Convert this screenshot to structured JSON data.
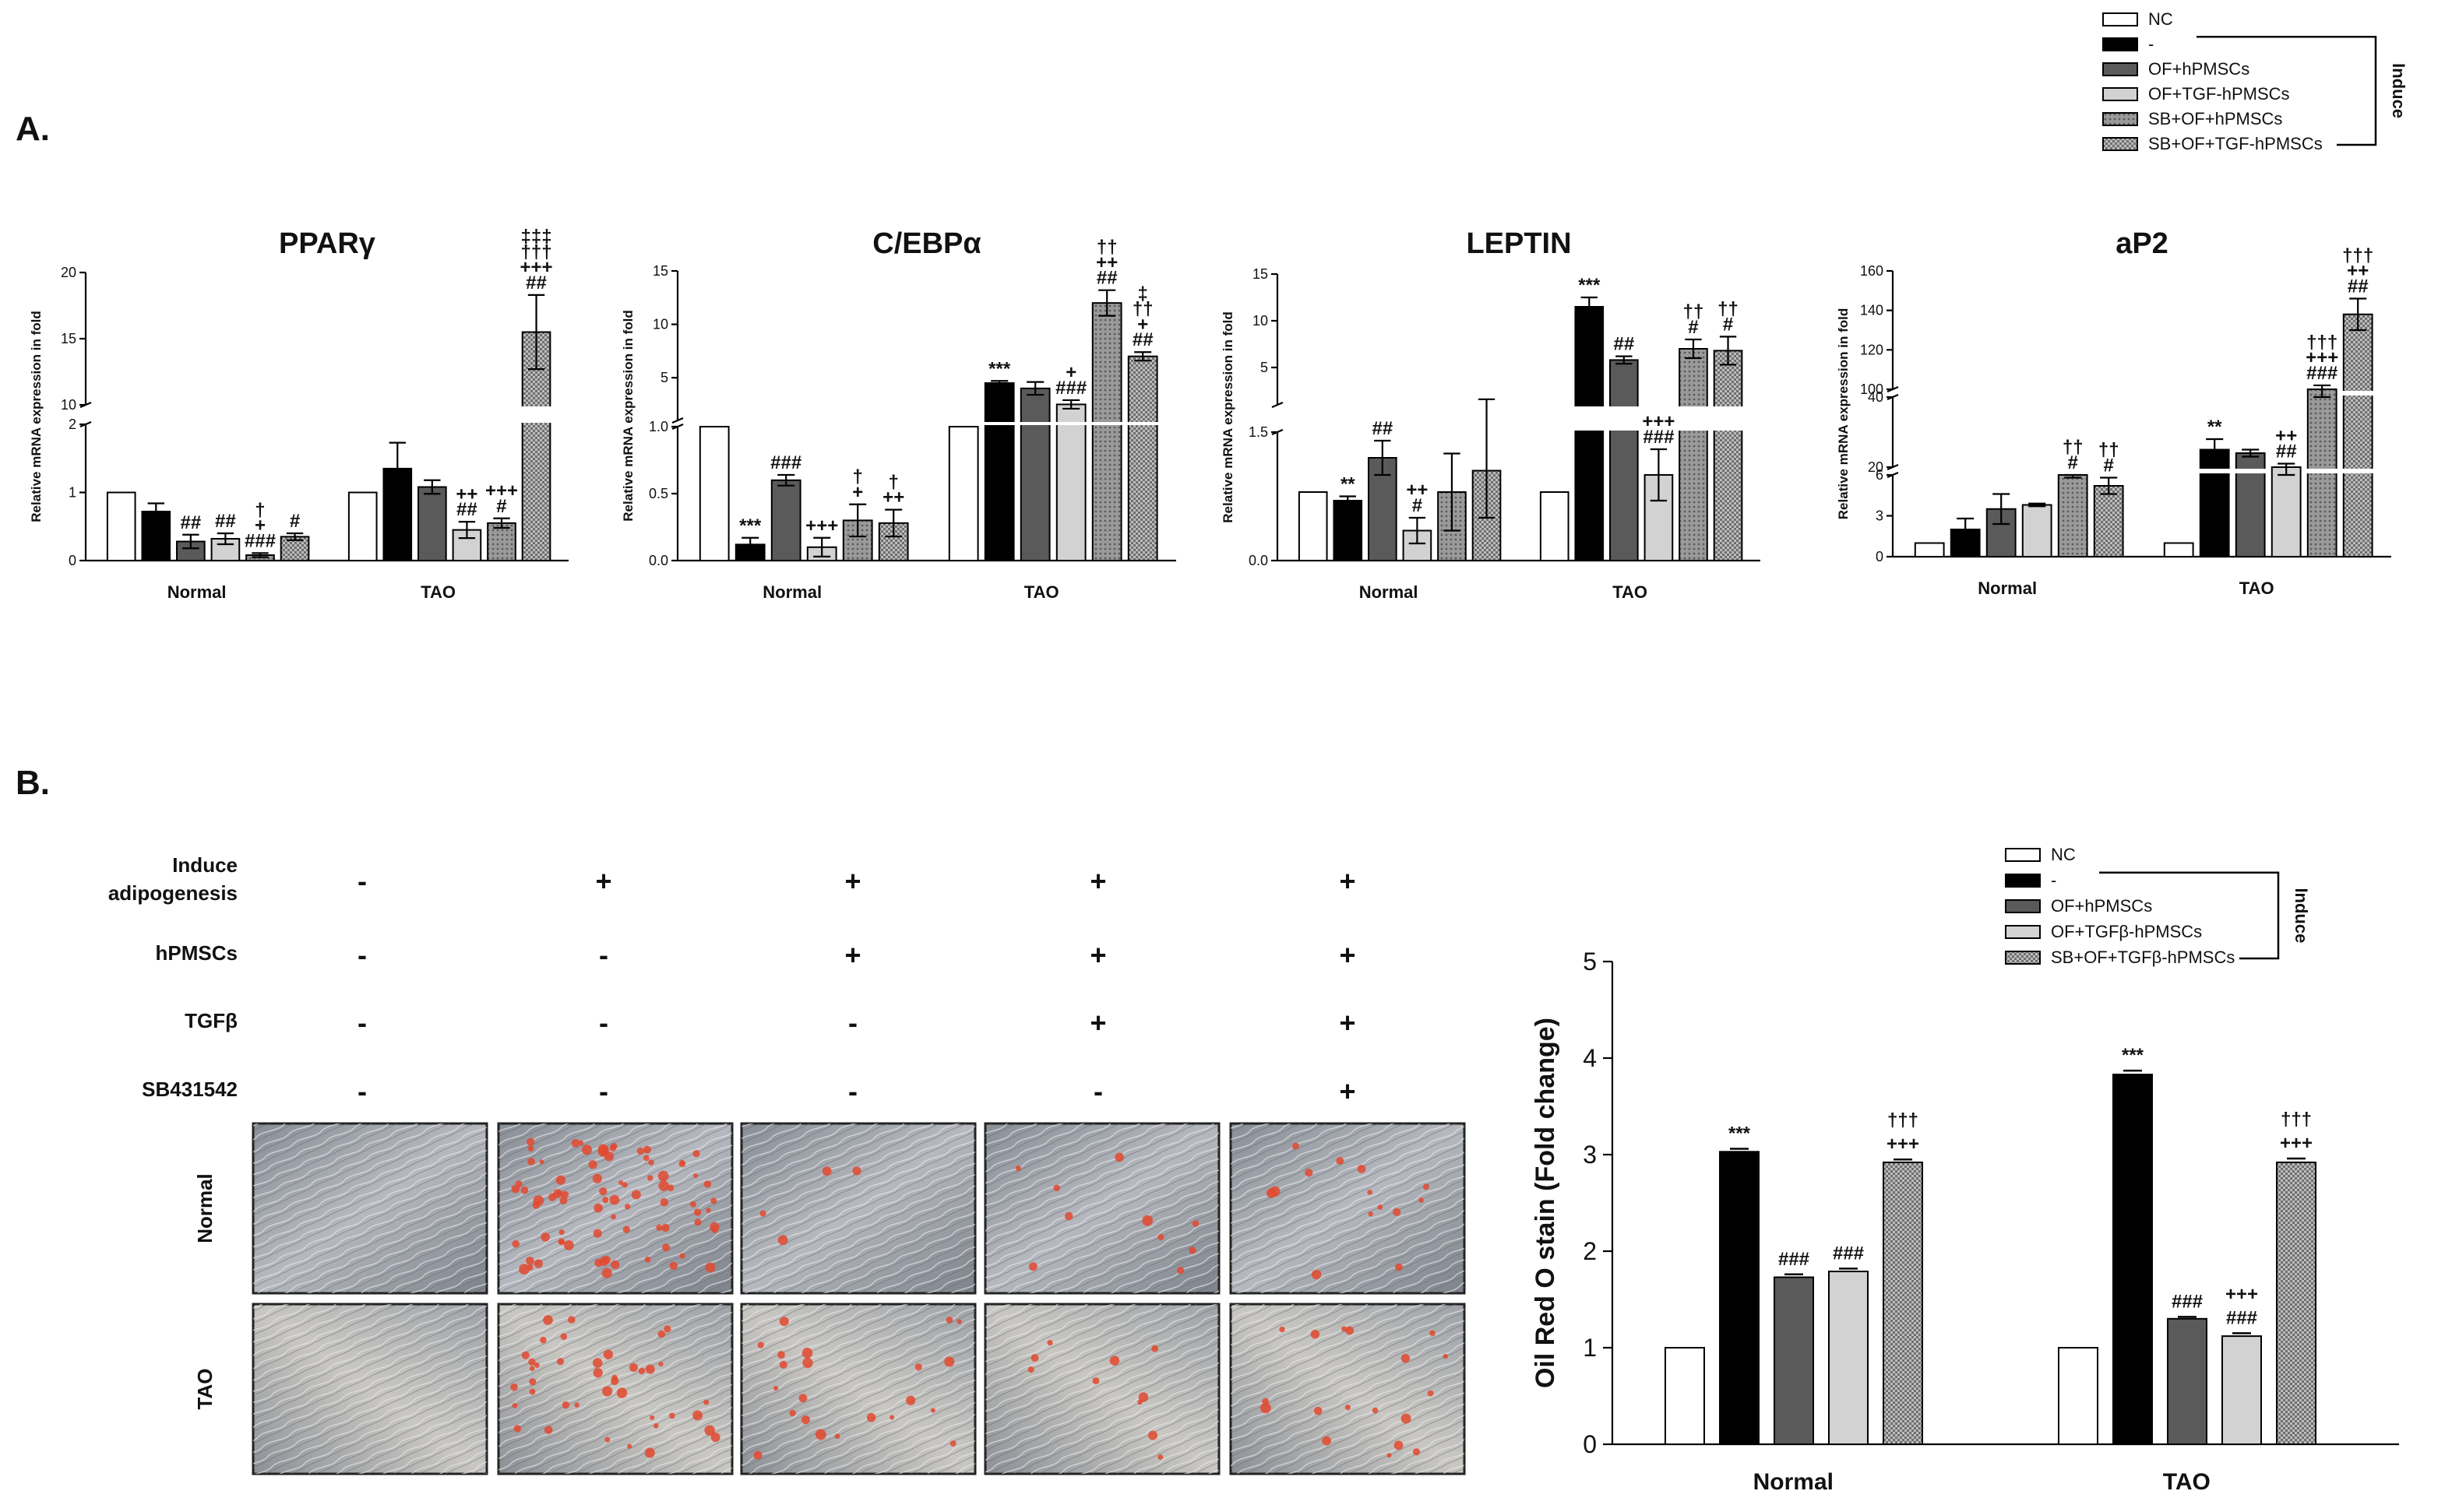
{
  "panel_a_label": "A.",
  "panel_b_label": "B.",
  "legend_a": {
    "entries": [
      "NC",
      "-",
      "OF+hPMSCs",
      "OF+TGF-hPMSCs",
      "SB+OF+hPMSCs",
      "SB+OF+TGF-hPMSCs"
    ],
    "bracket_label": "Induce"
  },
  "legend_b": {
    "entries": [
      "NC",
      "-",
      "OF+hPMSCs",
      "OF+TGFβ-hPMSCs",
      "SB+OF+TGFβ-hPMSCs"
    ],
    "bracket_label": "Induce"
  },
  "fill_styles": {
    "NC": "#ffffff",
    "-": "#000000",
    "OF+hPMSCs": "#5a5a5a",
    "OF+TGF-hPMSCs": "#d2d2d2",
    "SB+OF+hPMSCs": "#8e8e8e",
    "SB+OF+TGF-hPMSCs": "#a6a6a6"
  },
  "chart_data": [
    {
      "type": "bar",
      "title": "PPARγ",
      "ylabel": "Relative mRNA expression in fold",
      "categories": [
        "Normal",
        "TAO"
      ],
      "broken_axis": true,
      "lower_range": [
        0,
        2
      ],
      "lower_ticks": [
        "0",
        "1",
        "2"
      ],
      "upper_range": [
        10,
        20
      ],
      "upper_ticks": [
        "10",
        "15",
        "20"
      ],
      "series": [
        {
          "name": "NC",
          "values": [
            1.0,
            1.0
          ],
          "errors": [
            0,
            0
          ]
        },
        {
          "name": "-",
          "values": [
            0.72,
            1.35
          ],
          "errors": [
            0.12,
            0.38
          ]
        },
        {
          "name": "OF+hPMSCs",
          "values": [
            0.28,
            1.08
          ],
          "errors": [
            0.1,
            0.1
          ]
        },
        {
          "name": "OF+TGF-hPMSCs",
          "values": [
            0.32,
            0.45
          ],
          "errors": [
            0.08,
            0.12
          ]
        },
        {
          "name": "SB+OF+hPMSCs",
          "values": [
            0.08,
            0.55
          ],
          "errors": [
            0.03,
            0.07
          ]
        },
        {
          "name": "SB+OF+TGF-hPMSCs",
          "values": [
            0.35,
            15.5
          ],
          "errors": [
            0.05,
            2.8
          ]
        }
      ],
      "annotations": [
        [
          "",
          "",
          "##",
          "##",
          "†\n+\n###",
          "#"
        ],
        [
          "",
          "",
          "",
          "++\n##",
          "+++\n#",
          "‡‡‡\n†††\n+++\n##"
        ]
      ]
    },
    {
      "type": "bar",
      "title": "C/EBPα",
      "ylabel": "Relative mRNA expression in fold",
      "categories": [
        "Normal",
        "TAO"
      ],
      "broken_axis": true,
      "lower_range": [
        0,
        1
      ],
      "lower_ticks": [
        "0.0",
        "0.5",
        "1.0"
      ],
      "upper_range": [
        1,
        15
      ],
      "upper_ticks": [
        "5",
        "10",
        "15"
      ],
      "series": [
        {
          "name": "NC",
          "values": [
            1.0,
            1.0
          ],
          "errors": [
            0,
            0
          ]
        },
        {
          "name": "-",
          "values": [
            0.12,
            4.5
          ],
          "errors": [
            0.05,
            0.2
          ]
        },
        {
          "name": "OF+hPMSCs",
          "values": [
            0.6,
            4.0
          ],
          "errors": [
            0.04,
            0.6
          ]
        },
        {
          "name": "OF+TGF-hPMSCs",
          "values": [
            0.1,
            2.5
          ],
          "errors": [
            0.07,
            0.4
          ]
        },
        {
          "name": "SB+OF+hPMSCs",
          "values": [
            0.3,
            12.0
          ],
          "errors": [
            0.12,
            1.2
          ]
        },
        {
          "name": "SB+OF+TGF-hPMSCs",
          "values": [
            0.28,
            7.0
          ],
          "errors": [
            0.1,
            0.4
          ]
        }
      ],
      "annotations": [
        [
          "",
          "***",
          "###",
          "+++",
          "†\n+",
          "†\n++"
        ],
        [
          "",
          "***",
          "",
          "+\n###",
          "††\n++\n##",
          "‡\n††\n+\n##"
        ]
      ]
    },
    {
      "type": "bar",
      "title": "LEPTIN",
      "ylabel": "Relative mRNA expression in fold",
      "categories": [
        "Normal",
        "TAO"
      ],
      "broken_axis": true,
      "lower_range": [
        0,
        1.5
      ],
      "lower_ticks": [
        "0.0",
        "1.5"
      ],
      "upper_range": [
        1,
        15
      ],
      "upper_ticks": [
        "5",
        "10",
        "15"
      ],
      "series": [
        {
          "name": "NC",
          "values": [
            0.8,
            0.8
          ],
          "errors": [
            0,
            0
          ]
        },
        {
          "name": "-",
          "values": [
            0.7,
            11.5
          ],
          "errors": [
            0.05,
            1.0
          ]
        },
        {
          "name": "OF+hPMSCs",
          "values": [
            1.2,
            5.8
          ],
          "errors": [
            0.2,
            0.4
          ]
        },
        {
          "name": "OF+TGF-hPMSCs",
          "values": [
            0.35,
            1.0
          ],
          "errors": [
            0.15,
            0.3
          ]
        },
        {
          "name": "SB+OF+hPMSCs",
          "values": [
            0.8,
            7.0
          ],
          "errors": [
            0.45,
            1.0
          ]
        },
        {
          "name": "SB+OF+TGF-hPMSCs",
          "values": [
            1.05,
            6.8
          ],
          "errors": [
            0.55,
            1.5
          ]
        }
      ],
      "annotations": [
        [
          "",
          "**",
          "##",
          "++\n#",
          "",
          ""
        ],
        [
          "",
          "***",
          "##",
          "+++\n###",
          "††\n#",
          "††\n#"
        ]
      ]
    },
    {
      "type": "bar",
      "title": "aP2",
      "ylabel": "Relative mRNA expression in fold",
      "categories": [
        "Normal",
        "TAO"
      ],
      "broken_axis": true,
      "lower_range": [
        0,
        6
      ],
      "lower_ticks": [
        "0",
        "3",
        "6"
      ],
      "middle_range": [
        20,
        40
      ],
      "middle_ticks": [
        "20",
        "40"
      ],
      "upper_range": [
        100,
        160
      ],
      "upper_ticks": [
        "100",
        "120",
        "140",
        "160"
      ],
      "series": [
        {
          "name": "NC",
          "values": [
            1.0,
            1.0
          ],
          "errors": [
            0,
            0
          ]
        },
        {
          "name": "-",
          "values": [
            2.0,
            25.0
          ],
          "errors": [
            0.8,
            3.0
          ]
        },
        {
          "name": "OF+hPMSCs",
          "values": [
            3.5,
            24.0
          ],
          "errors": [
            1.1,
            1.0
          ]
        },
        {
          "name": "OF+TGF-hPMSCs",
          "values": [
            3.8,
            20.0
          ],
          "errors": [
            0.1,
            1.0
          ]
        },
        {
          "name": "SB+OF+hPMSCs",
          "values": [
            6.0,
            100.0
          ],
          "errors": [
            0.2,
            2.0
          ]
        },
        {
          "name": "SB+OF+TGF-hPMSCs",
          "values": [
            5.2,
            138.0
          ],
          "errors": [
            0.6,
            8.0
          ]
        }
      ],
      "annotations": [
        [
          "",
          "",
          "",
          "",
          "††\n#",
          "††\n#"
        ],
        [
          "",
          "**",
          "",
          "++\n##",
          "†††\n+++\n###",
          "†††\n++\n##"
        ]
      ]
    },
    {
      "type": "bar",
      "title": "",
      "ylabel": "Oil Red O stain (Fold change)",
      "categories": [
        "Normal",
        "TAO"
      ],
      "ylim": [
        0,
        5
      ],
      "yticks": [
        "0",
        "1",
        "2",
        "3",
        "4",
        "5"
      ],
      "series": [
        {
          "name": "NC",
          "values": [
            1.0,
            1.0
          ],
          "errors": [
            0,
            0
          ]
        },
        {
          "name": "-",
          "values": [
            3.03,
            3.83
          ],
          "errors": [
            0.03,
            0.04
          ]
        },
        {
          "name": "OF+hPMSCs",
          "values": [
            1.73,
            1.3
          ],
          "errors": [
            0.03,
            0.02
          ]
        },
        {
          "name": "OF+TGFβ-hPMSCs",
          "values": [
            1.79,
            1.12
          ],
          "errors": [
            0.03,
            0.03
          ]
        },
        {
          "name": "SB+OF+TGFβ-hPMSCs",
          "values": [
            2.92,
            2.92
          ],
          "errors": [
            0.03,
            0.04
          ]
        }
      ],
      "annotations": [
        [
          "",
          "***",
          "###",
          "###",
          "†††\n+++"
        ],
        [
          "",
          "***",
          "###",
          "+++\n###",
          "†††\n+++"
        ]
      ]
    }
  ],
  "treatment_grid": {
    "rows": [
      "Induce\nadipogenesis",
      "hPMSCs",
      "TGFβ",
      "SB431542"
    ],
    "values": [
      [
        "-",
        "+",
        "+",
        "+",
        "+"
      ],
      [
        "-",
        "-",
        "+",
        "+",
        "+"
      ],
      [
        "-",
        "-",
        "-",
        "+",
        "+"
      ],
      [
        "-",
        "-",
        "-",
        "-",
        "+"
      ]
    ]
  },
  "image_rows": [
    "Normal",
    "TAO"
  ]
}
